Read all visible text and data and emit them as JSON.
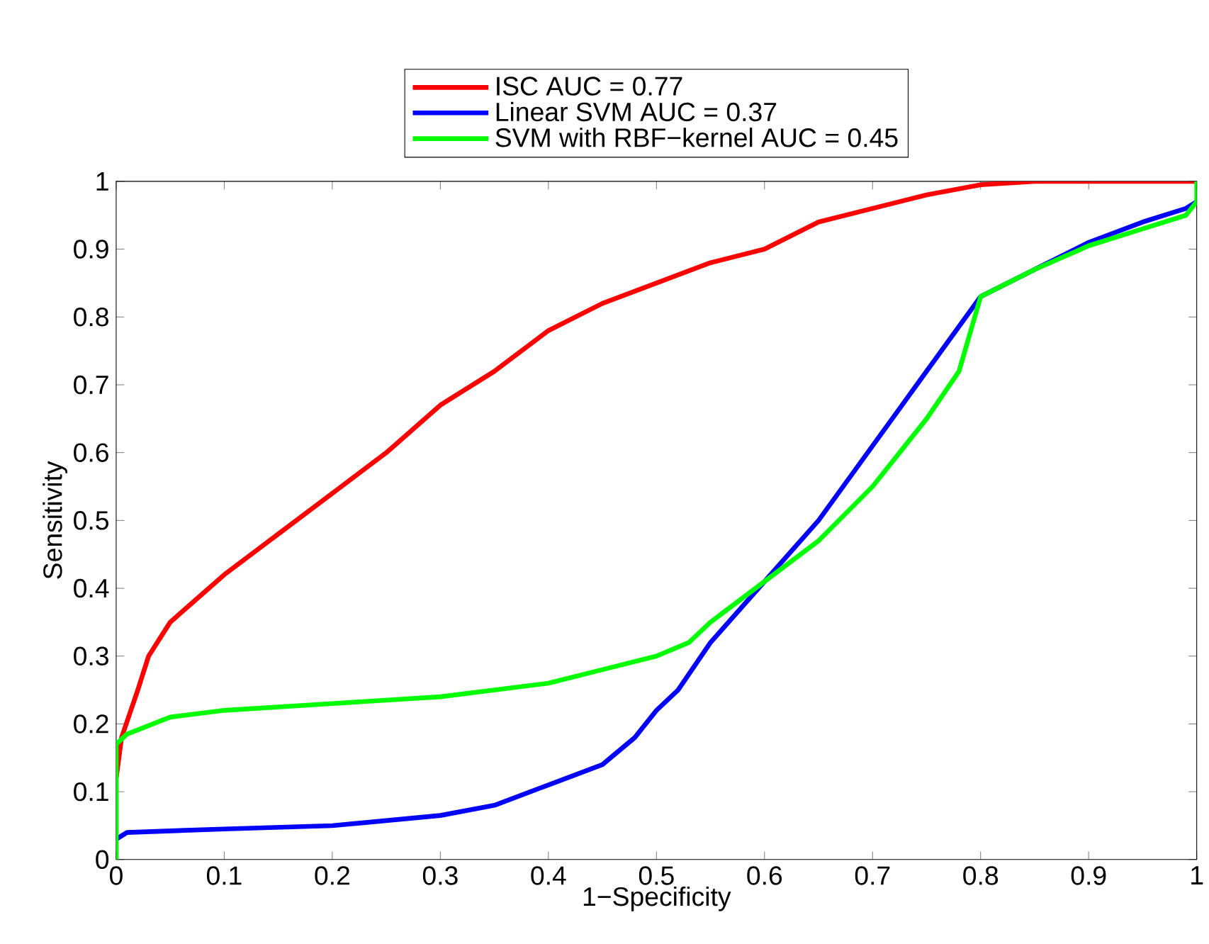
{
  "chart_data": {
    "type": "line",
    "xlabel": "1−Specificity",
    "ylabel": "Sensitivity",
    "xlim": [
      0,
      1
    ],
    "ylim": [
      0,
      1
    ],
    "xticks": [
      0,
      0.1,
      0.2,
      0.3,
      0.4,
      0.5,
      0.6,
      0.7,
      0.8,
      0.9,
      1
    ],
    "yticks": [
      0,
      0.1,
      0.2,
      0.3,
      0.4,
      0.5,
      0.6,
      0.7,
      0.8,
      0.9,
      1
    ],
    "grid": false,
    "legend": "top",
    "marker": "none",
    "line_style": "solid",
    "series": [
      {
        "name": "ISC AUC = 0.77",
        "color": "#ff0000",
        "x": [
          0,
          0.005,
          0.02,
          0.03,
          0.05,
          0.1,
          0.15,
          0.2,
          0.25,
          0.3,
          0.35,
          0.4,
          0.45,
          0.5,
          0.55,
          0.6,
          0.65,
          0.7,
          0.75,
          0.8,
          0.85,
          1
        ],
        "values": [
          0.12,
          0.18,
          0.25,
          0.3,
          0.35,
          0.42,
          0.48,
          0.54,
          0.6,
          0.67,
          0.72,
          0.78,
          0.82,
          0.85,
          0.88,
          0.9,
          0.94,
          0.96,
          0.98,
          0.995,
          1,
          1
        ]
      },
      {
        "name": "Linear SVM AUC = 0.37",
        "color": "#0000ff",
        "x": [
          0,
          0.01,
          0.1,
          0.2,
          0.3,
          0.35,
          0.4,
          0.45,
          0.48,
          0.5,
          0.52,
          0.55,
          0.6,
          0.65,
          0.7,
          0.75,
          0.8,
          0.85,
          0.9,
          0.95,
          0.99,
          1
        ],
        "values": [
          0.03,
          0.04,
          0.045,
          0.05,
          0.065,
          0.08,
          0.11,
          0.14,
          0.18,
          0.22,
          0.25,
          0.32,
          0.41,
          0.5,
          0.61,
          0.72,
          0.83,
          0.87,
          0.91,
          0.94,
          0.96,
          0.97
        ]
      },
      {
        "name": "SVM with RBF−kernel AUC = 0.45",
        "color": "#00ff00",
        "x": [
          0,
          0,
          0.01,
          0.05,
          0.1,
          0.2,
          0.3,
          0.4,
          0.45,
          0.5,
          0.53,
          0.55,
          0.6,
          0.65,
          0.7,
          0.75,
          0.78,
          0.8,
          0.85,
          0.9,
          0.95,
          0.99,
          1,
          1
        ],
        "values": [
          0,
          0.17,
          0.185,
          0.21,
          0.22,
          0.23,
          0.24,
          0.26,
          0.28,
          0.3,
          0.32,
          0.35,
          0.41,
          0.47,
          0.55,
          0.65,
          0.72,
          0.83,
          0.87,
          0.905,
          0.93,
          0.95,
          0.97,
          1
        ]
      }
    ]
  }
}
